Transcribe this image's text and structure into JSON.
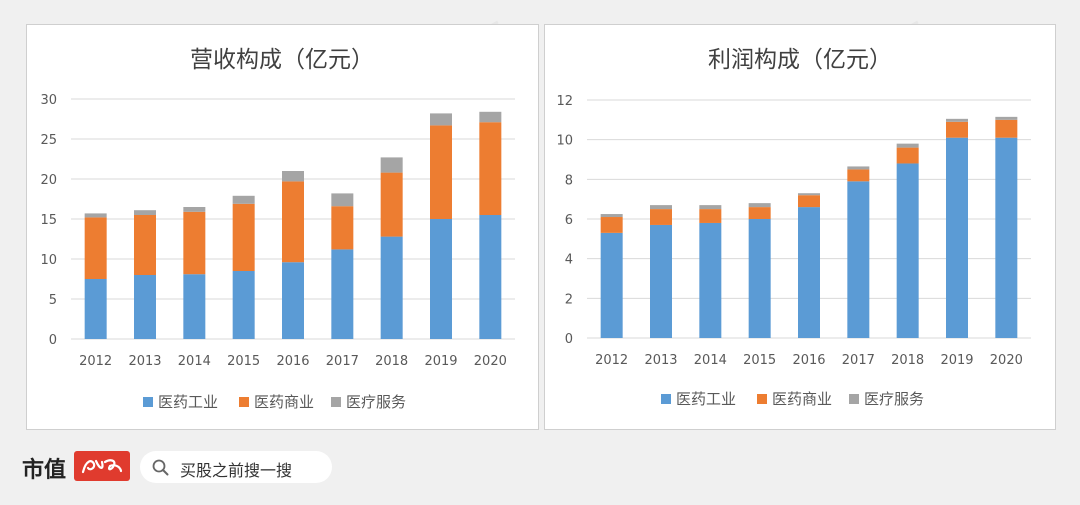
{
  "watermark_text": "市值风云",
  "footer": {
    "brand": "市值",
    "logo_text": "风云",
    "search_text": "买股之前搜一搜"
  },
  "colors": {
    "industry": "#5b9bd5",
    "commercial": "#ed7d31",
    "service": "#a5a5a5",
    "grid": "#d9d9d9",
    "text": "#595959"
  },
  "chart_data": [
    {
      "type": "bar",
      "stacked": true,
      "title": "营收构成（亿元）",
      "categories": [
        "2012",
        "2013",
        "2014",
        "2015",
        "2016",
        "2017",
        "2018",
        "2019",
        "2020"
      ],
      "ylim": [
        0,
        30
      ],
      "yticks": [
        0,
        5,
        10,
        15,
        20,
        25,
        30
      ],
      "series": [
        {
          "name": "医药工业",
          "values": [
            7.5,
            8.0,
            8.1,
            8.5,
            9.6,
            11.2,
            12.8,
            15.0,
            15.5
          ]
        },
        {
          "name": "医药商业",
          "values": [
            7.7,
            7.5,
            7.8,
            8.4,
            10.1,
            5.4,
            8.0,
            11.7,
            11.6
          ]
        },
        {
          "name": "医疗服务",
          "values": [
            0.5,
            0.6,
            0.6,
            1.0,
            1.3,
            1.6,
            1.9,
            1.5,
            1.3
          ]
        }
      ]
    },
    {
      "type": "bar",
      "stacked": true,
      "title": "利润构成（亿元）",
      "categories": [
        "2012",
        "2013",
        "2014",
        "2015",
        "2016",
        "2017",
        "2018",
        "2019",
        "2020"
      ],
      "ylim": [
        0,
        12
      ],
      "yticks": [
        0,
        2,
        4,
        6,
        8,
        10,
        12
      ],
      "series": [
        {
          "name": "医药工业",
          "values": [
            5.3,
            5.7,
            5.8,
            6.0,
            6.6,
            7.9,
            8.8,
            10.1,
            10.1
          ]
        },
        {
          "name": "医药商业",
          "values": [
            0.8,
            0.8,
            0.7,
            0.6,
            0.6,
            0.6,
            0.8,
            0.8,
            0.9
          ]
        },
        {
          "name": "医疗服务",
          "values": [
            0.15,
            0.2,
            0.2,
            0.2,
            0.1,
            0.15,
            0.2,
            0.15,
            0.15
          ]
        }
      ]
    }
  ]
}
